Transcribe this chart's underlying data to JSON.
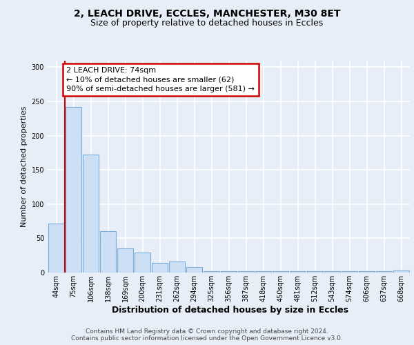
{
  "title": "2, LEACH DRIVE, ECCLES, MANCHESTER, M30 8ET",
  "subtitle": "Size of property relative to detached houses in Eccles",
  "xlabel": "Distribution of detached houses by size in Eccles",
  "ylabel": "Number of detached properties",
  "categories": [
    "44sqm",
    "75sqm",
    "106sqm",
    "138sqm",
    "169sqm",
    "200sqm",
    "231sqm",
    "262sqm",
    "294sqm",
    "325sqm",
    "356sqm",
    "387sqm",
    "418sqm",
    "450sqm",
    "481sqm",
    "512sqm",
    "543sqm",
    "574sqm",
    "606sqm",
    "637sqm",
    "668sqm"
  ],
  "values": [
    72,
    242,
    172,
    60,
    35,
    29,
    14,
    16,
    8,
    2,
    2,
    2,
    2,
    2,
    2,
    2,
    2,
    2,
    2,
    2,
    3
  ],
  "bar_color": "#ccdff5",
  "bar_edge_color": "#7aaed6",
  "background_color": "#e8eef8",
  "grid_color": "#ffffff",
  "annotation_text": "2 LEACH DRIVE: 74sqm\n← 10% of detached houses are smaller (62)\n90% of semi-detached houses are larger (581) →",
  "annotation_box_color": "#ffffff",
  "annotation_box_edge_color": "#cc0000",
  "vline_color": "#cc0000",
  "footer": "Contains HM Land Registry data © Crown copyright and database right 2024.\nContains public sector information licensed under the Open Government Licence v3.0.",
  "title_fontsize": 10,
  "subtitle_fontsize": 9,
  "xlabel_fontsize": 9,
  "ylabel_fontsize": 8,
  "tick_fontsize": 7,
  "annot_fontsize": 8,
  "footer_fontsize": 6.5,
  "ylim": [
    0,
    310
  ]
}
